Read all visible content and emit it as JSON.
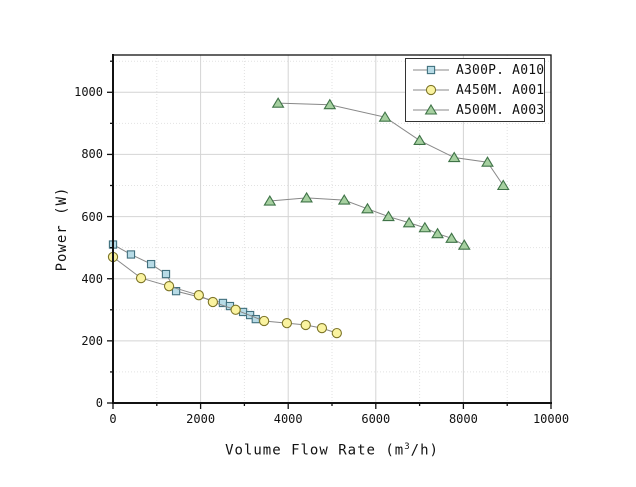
{
  "chart_data": {
    "type": "line",
    "title": "",
    "xlabel": "Volume Flow Rate (m³/h)",
    "xlabel_parts": {
      "prefix": "Volume Flow Rate (m",
      "sup": "3",
      "suffix": "/h)"
    },
    "ylabel": "Power (W)",
    "xlim": [
      0,
      10000
    ],
    "ylim": [
      0,
      1120
    ],
    "x_major_ticks": [
      0,
      2000,
      4000,
      6000,
      8000,
      10000
    ],
    "y_major_ticks": [
      0,
      200,
      400,
      600,
      800,
      1000
    ],
    "x_minor_step": 1000,
    "y_minor_step": 100,
    "grid": "major solid + minor dotted",
    "legend_position": "top-right",
    "style": {
      "axis_color": "#111111",
      "major_grid_color": "#d4d4d4",
      "minor_grid_color": "#e2e2e2",
      "series_line_color": "#888888",
      "legend_border_color": "#333333",
      "background": "#ffffff"
    },
    "series": [
      {
        "name": "A300P. A010",
        "marker": "square",
        "marker_fill": "#b7dbe6",
        "marker_stroke": "#41707e",
        "segments": [
          [
            [
              0,
              510
            ],
            [
              410,
              478
            ],
            [
              870,
              447
            ],
            [
              1210,
              415
            ],
            [
              1440,
              360
            ],
            [
              2510,
              322
            ],
            [
              2670,
              312
            ],
            [
              2970,
              293
            ],
            [
              3130,
              283
            ],
            [
              3260,
              270
            ]
          ]
        ]
      },
      {
        "name": "A450M. A001",
        "marker": "circle",
        "marker_fill": "#faf3a0",
        "marker_stroke": "#7d7528",
        "segments": [
          [
            [
              0,
              470
            ],
            [
              640,
              402
            ],
            [
              1280,
              376
            ],
            [
              1960,
              347
            ],
            [
              2280,
              325
            ],
            [
              2800,
              300
            ],
            [
              3450,
              264
            ],
            [
              3970,
              257
            ],
            [
              4400,
              251
            ],
            [
              4770,
              241
            ],
            [
              5110,
              225
            ]
          ]
        ]
      },
      {
        "name": "A500M. A003",
        "marker": "triangle",
        "marker_fill": "#a6d0a0",
        "marker_stroke": "#3f7347",
        "segments": [
          [
            [
              3770,
              965
            ],
            [
              4950,
              960
            ],
            [
              6210,
              920
            ],
            [
              7000,
              845
            ],
            [
              7790,
              790
            ],
            [
              8550,
              775
            ],
            [
              8910,
              700
            ]
          ],
          [
            [
              3580,
              650
            ],
            [
              4420,
              660
            ],
            [
              5280,
              653
            ],
            [
              5810,
              625
            ],
            [
              6290,
              600
            ],
            [
              6760,
              580
            ],
            [
              7120,
              564
            ],
            [
              7410,
              545
            ],
            [
              7730,
              530
            ],
            [
              8020,
              508
            ]
          ]
        ]
      }
    ]
  }
}
